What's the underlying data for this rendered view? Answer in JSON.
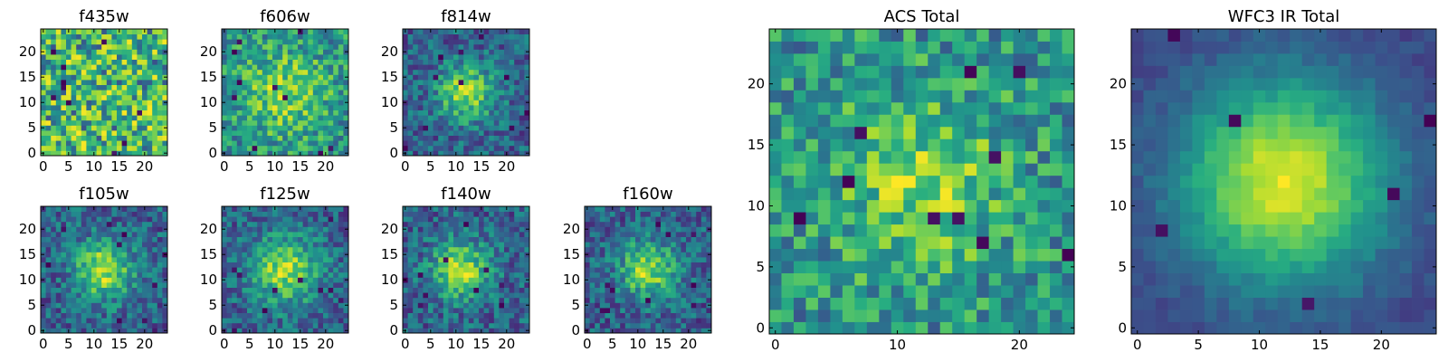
{
  "chart_data": [
    {
      "type": "heatmap",
      "title": "f435w",
      "xticks": [
        0,
        5,
        10,
        15,
        20
      ],
      "yticks": [
        0,
        5,
        10,
        15,
        20
      ],
      "xlim": [
        0,
        24
      ],
      "ylim": [
        0,
        24
      ],
      "grid_size": 25,
      "structure": "noise",
      "peak": [
        12,
        12
      ],
      "sigma": 0,
      "seed": 11,
      "colormap": "viridis",
      "grid": false
    },
    {
      "type": "heatmap",
      "title": "f606w",
      "xticks": [
        0,
        5,
        10,
        15,
        20
      ],
      "yticks": [
        0,
        5,
        10,
        15,
        20
      ],
      "xlim": [
        0,
        24
      ],
      "ylim": [
        0,
        24
      ],
      "grid_size": 25,
      "structure": "faint_blob",
      "peak": [
        12,
        12
      ],
      "sigma": 6,
      "seed": 23,
      "colormap": "viridis",
      "grid": false
    },
    {
      "type": "heatmap",
      "title": "f814w",
      "xticks": [
        0,
        5,
        10,
        15,
        20
      ],
      "yticks": [
        0,
        5,
        10,
        15,
        20
      ],
      "xlim": [
        0,
        24
      ],
      "ylim": [
        0,
        24
      ],
      "grid_size": 25,
      "structure": "blob",
      "peak": [
        12,
        12
      ],
      "sigma": 4,
      "seed": 37,
      "colormap": "viridis",
      "grid": false
    },
    {
      "type": "heatmap",
      "title": "f105w",
      "xticks": [
        0,
        5,
        10,
        15,
        20
      ],
      "yticks": [
        0,
        5,
        10,
        15,
        20
      ],
      "xlim": [
        0,
        24
      ],
      "ylim": [
        0,
        24
      ],
      "grid_size": 25,
      "structure": "blob",
      "peak": [
        12,
        12
      ],
      "sigma": 4,
      "seed": 41,
      "colormap": "viridis",
      "grid": false
    },
    {
      "type": "heatmap",
      "title": "f125w",
      "xticks": [
        0,
        5,
        10,
        15,
        20
      ],
      "yticks": [
        0,
        5,
        10,
        15,
        20
      ],
      "xlim": [
        0,
        24
      ],
      "ylim": [
        0,
        24
      ],
      "grid_size": 25,
      "structure": "blob",
      "peak": [
        12,
        12
      ],
      "sigma": 5,
      "seed": 53,
      "colormap": "viridis",
      "grid": false
    },
    {
      "type": "heatmap",
      "title": "f140w",
      "xticks": [
        0,
        5,
        10,
        15,
        20
      ],
      "yticks": [
        0,
        5,
        10,
        15,
        20
      ],
      "xlim": [
        0,
        24
      ],
      "ylim": [
        0,
        24
      ],
      "grid_size": 25,
      "structure": "blob",
      "peak": [
        11,
        12
      ],
      "sigma": 4,
      "seed": 67,
      "colormap": "viridis",
      "grid": false
    },
    {
      "type": "heatmap",
      "title": "f160w",
      "xticks": [
        0,
        5,
        10,
        15,
        20
      ],
      "yticks": [
        0,
        5,
        10,
        15,
        20
      ],
      "xlim": [
        0,
        24
      ],
      "ylim": [
        0,
        24
      ],
      "grid_size": 25,
      "structure": "blob",
      "peak": [
        12,
        12
      ],
      "sigma": 4,
      "seed": 79,
      "colormap": "viridis",
      "grid": false
    },
    {
      "type": "heatmap",
      "title": "ACS Total",
      "xticks": [
        0,
        10,
        20
      ],
      "yticks": [
        0,
        5,
        10,
        15,
        20
      ],
      "xlim": [
        0,
        24
      ],
      "ylim": [
        0,
        24
      ],
      "grid_size": 25,
      "structure": "faint_blob",
      "peak": [
        12,
        12
      ],
      "sigma": 5,
      "seed": 97,
      "colormap": "viridis",
      "grid": false
    },
    {
      "type": "heatmap",
      "title": "WFC3 IR Total",
      "xticks": [
        0,
        5,
        10,
        15,
        20
      ],
      "yticks": [
        0,
        5,
        10,
        15,
        20
      ],
      "xlim": [
        0,
        24
      ],
      "ylim": [
        0,
        24
      ],
      "grid_size": 25,
      "structure": "smooth_blob",
      "peak": [
        12,
        12
      ],
      "sigma": 6,
      "seed": 113,
      "colormap": "viridis",
      "grid": false
    }
  ]
}
